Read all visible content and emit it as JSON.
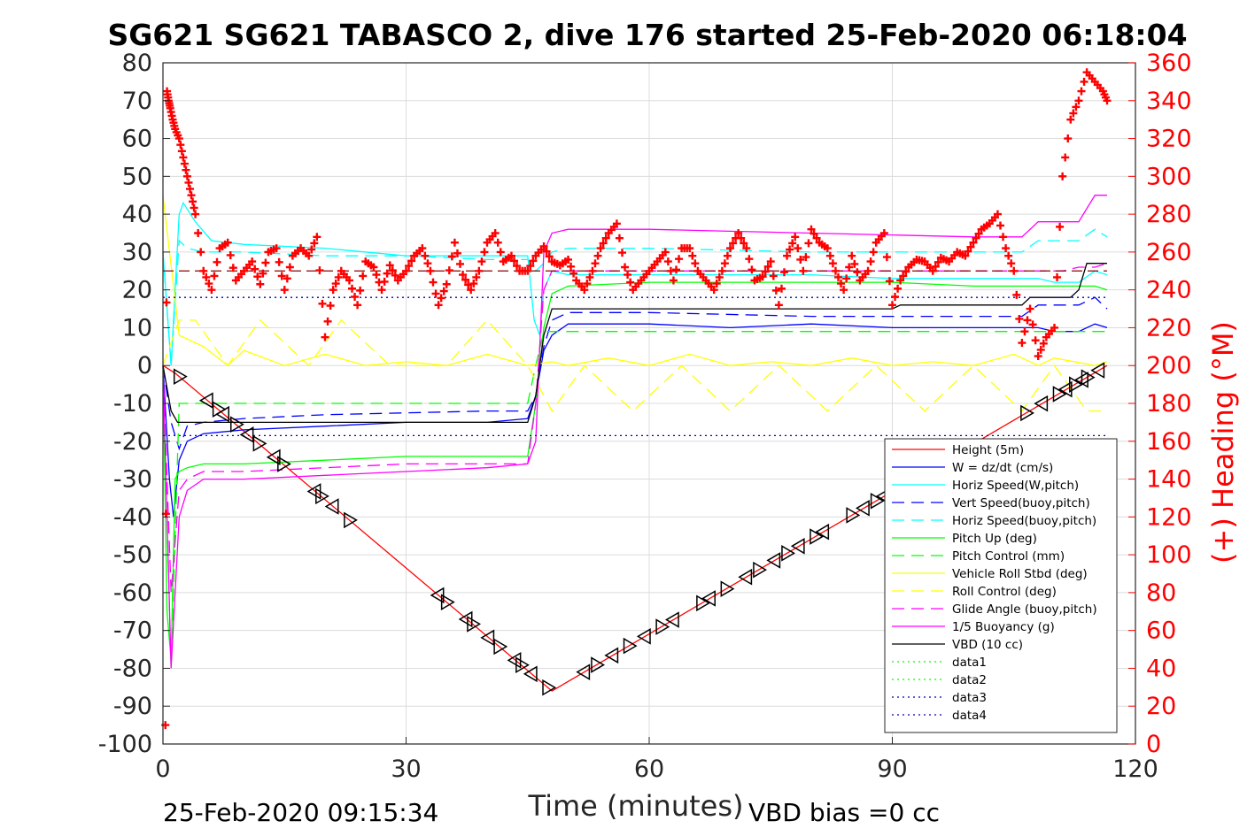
{
  "chart_data": {
    "type": "line",
    "title": "SG621 SG621 TABASCO 2, dive 176 started 25-Feb-2020 06:18:04",
    "xlabel": "Time (minutes)",
    "ylabel": "",
    "ylabel_right": "(+) Heading (°M)",
    "xlim": [
      0,
      120
    ],
    "ylim": [
      -100,
      80
    ],
    "ylim_right": [
      0,
      360
    ],
    "x_ticks": [
      0,
      30,
      60,
      90,
      120
    ],
    "y_ticks": [
      80,
      70,
      60,
      50,
      40,
      30,
      20,
      10,
      0,
      -10,
      -20,
      -30,
      -40,
      -50,
      -60,
      -70,
      -80,
      -90,
      -100
    ],
    "y_ticks_right": [
      360,
      340,
      320,
      300,
      280,
      260,
      240,
      220,
      200,
      180,
      160,
      140,
      120,
      100,
      80,
      60,
      40,
      20,
      0
    ],
    "grid": true,
    "legend_position": "bottom-right",
    "footer_left": "25-Feb-2020 09:15:34",
    "footer_right": "VBD bias =0 cc",
    "series": [
      {
        "name": "Height (5m)",
        "color": "#ff0000",
        "style": "solid",
        "x": [
          0,
          1.5,
          48,
          116.5
        ],
        "y": [
          0,
          -2,
          -86,
          0
        ]
      },
      {
        "name": "W = dz/dt (cm/s)",
        "color": "#0000ff",
        "style": "solid",
        "x": [
          0,
          0.8,
          1.3,
          2,
          3,
          5,
          10,
          20,
          30,
          40,
          45,
          46,
          47,
          48,
          50,
          60,
          70,
          80,
          90,
          100,
          108,
          110,
          113,
          115,
          116.5
        ],
        "y": [
          0,
          -30,
          -40,
          -25,
          -20,
          -18,
          -17,
          -16,
          -15,
          -15,
          -14,
          -8,
          4,
          8,
          11,
          11,
          10,
          11,
          10,
          10,
          10,
          9,
          9,
          11,
          10
        ]
      },
      {
        "name": "Horiz Speed(W,pitch)",
        "color": "#00ffff",
        "style": "solid",
        "x": [
          0,
          1,
          2,
          2.5,
          4,
          6,
          10,
          20,
          30,
          40,
          45,
          45.8,
          46.5,
          47,
          48,
          50,
          60,
          70,
          80,
          90,
          100,
          108,
          110,
          113,
          115,
          116.5
        ],
        "y": [
          30,
          0,
          40,
          43,
          38,
          33,
          32,
          31,
          29,
          29,
          29,
          12,
          8,
          20,
          25,
          24,
          24,
          24,
          24,
          23,
          23,
          23,
          22,
          22,
          25,
          24
        ]
      },
      {
        "name": "Vert Speed(buoy,pitch)",
        "color": "#0000ff",
        "style": "dashed",
        "x": [
          0,
          1,
          2,
          3,
          5,
          10,
          20,
          30,
          40,
          45,
          46,
          47,
          48,
          50,
          60,
          80,
          100,
          106,
          108,
          111,
          113,
          115,
          116.5
        ],
        "y": [
          0,
          -15,
          -22,
          -16,
          -15,
          -14,
          -13,
          -12.5,
          -12,
          -12,
          -8,
          5,
          12,
          14,
          14,
          13,
          13,
          13,
          16,
          16,
          16,
          18,
          15
        ]
      },
      {
        "name": "Horiz Speed(buoy,pitch)",
        "color": "#00ffff",
        "style": "dashed",
        "x": [
          0,
          1,
          2,
          3,
          5,
          10,
          20,
          30,
          40,
          45,
          46,
          47,
          48,
          50,
          60,
          80,
          100,
          106,
          108,
          111,
          113,
          115,
          116.5
        ],
        "y": [
          30,
          0,
          33,
          31,
          30,
          30,
          29,
          29,
          28,
          28,
          25,
          27,
          30,
          31,
          31,
          30,
          30,
          30,
          33,
          33,
          33,
          36,
          34
        ]
      },
      {
        "name": "Pitch Up (deg)",
        "color": "#00ff00",
        "style": "solid",
        "x": [
          0,
          0.5,
          1,
          1.5,
          2,
          3,
          5,
          10,
          20,
          30,
          40,
          45,
          46,
          47,
          48,
          50,
          60,
          70,
          80,
          90,
          100,
          110,
          113,
          115,
          116.5
        ],
        "y": [
          0,
          -65,
          -78,
          -30,
          -28,
          -27,
          -26,
          -26,
          -25,
          -24,
          -24,
          -24,
          -10,
          10,
          19,
          21,
          22,
          22,
          22,
          22,
          21,
          21,
          21,
          21,
          20
        ]
      },
      {
        "name": "Pitch Control (mm)",
        "color": "#00ff00",
        "style": "dashed",
        "x": [
          0,
          1,
          2,
          4,
          10,
          20,
          30,
          40,
          45,
          46,
          47,
          48,
          50,
          60,
          80,
          100,
          110,
          116.5
        ],
        "y": [
          0,
          -80,
          -10,
          -10,
          -10,
          -10,
          -10,
          -10,
          -10,
          0,
          9,
          9,
          9,
          9,
          9,
          9,
          9,
          9
        ]
      },
      {
        "name": "Vehicle Roll Stbd (deg)",
        "color": "#ffff00",
        "style": "solid",
        "x": [
          0,
          2,
          5,
          8,
          10,
          15,
          20,
          25,
          30,
          35,
          40,
          45,
          48,
          50,
          55,
          60,
          65,
          70,
          75,
          80,
          85,
          90,
          95,
          100,
          105,
          108,
          110,
          115,
          116.5
        ],
        "y": [
          45,
          8,
          5,
          0,
          4,
          0,
          3,
          0,
          1,
          0,
          3,
          0,
          1,
          0,
          2,
          0,
          3,
          0,
          1,
          0,
          2,
          0,
          1,
          0,
          3,
          0,
          2,
          0,
          1
        ]
      },
      {
        "name": "Roll Control (deg)",
        "color": "#ffff00",
        "style": "dashed",
        "x": [
          0,
          2,
          4,
          8,
          12,
          18,
          22,
          28,
          35,
          40,
          45,
          48,
          52,
          58,
          64,
          70,
          76,
          82,
          88,
          94,
          100,
          106,
          110,
          114,
          116.5
        ],
        "y": [
          0,
          12,
          12,
          0,
          12,
          0,
          12,
          0,
          0,
          12,
          0,
          -12,
          0,
          -12,
          0,
          -12,
          0,
          -12,
          0,
          -12,
          0,
          -12,
          0,
          -12,
          -12
        ]
      },
      {
        "name": "Glide Angle (buoy,pitch)",
        "color": "#ff00ff",
        "style": "dashed",
        "x": [
          0,
          1,
          2,
          3,
          5,
          10,
          20,
          30,
          40,
          45,
          46,
          47,
          48,
          50,
          60,
          80,
          100,
          106,
          108,
          111,
          113,
          115,
          116.5
        ],
        "y": [
          0,
          -60,
          -33,
          -30,
          -28,
          -28,
          -27,
          -26,
          -26,
          -26,
          -10,
          20,
          25,
          25,
          25,
          25,
          25,
          25,
          25,
          25,
          26,
          26,
          27
        ]
      },
      {
        "name": "1/5 Buoyancy (g)",
        "color": "#ff00ff",
        "style": "solid",
        "x": [
          0,
          1,
          2,
          3,
          5,
          10,
          20,
          30,
          40,
          45,
          46,
          47,
          48,
          50,
          60,
          70,
          80,
          90,
          100,
          106,
          108,
          111,
          113,
          115,
          116.5
        ],
        "y": [
          0,
          -80,
          -40,
          -33,
          -30,
          -30,
          -29,
          -28,
          -27,
          -26,
          -20,
          30,
          35,
          36,
          36,
          35.5,
          35,
          34.5,
          34,
          34,
          38,
          38,
          38,
          45,
          45
        ]
      },
      {
        "name": "VBD (10 cc)",
        "color": "#000000",
        "style": "solid",
        "x": [
          0,
          1,
          1.8,
          45,
          46,
          47,
          48,
          90,
          91,
          106,
          107,
          112,
          113,
          114,
          116.5
        ],
        "y": [
          0,
          -12,
          -15,
          -15,
          -8,
          8,
          15,
          15,
          16,
          16,
          18,
          18,
          20,
          27,
          27
        ]
      },
      {
        "name": "data1",
        "color": "#00ff00",
        "style": "dotted",
        "x": [],
        "y": []
      },
      {
        "name": "data2",
        "color": "#00ff00",
        "style": "dotted",
        "x": [],
        "y": []
      },
      {
        "name": "data3",
        "color": "#0000aa",
        "style": "dotted",
        "x": [
          0,
          116.5
        ],
        "y": [
          18,
          18
        ]
      },
      {
        "name": "data4",
        "color": "#0000aa",
        "style": "dotted",
        "x": [
          0,
          116.5
        ],
        "y": [
          -18.5,
          -18.5
        ]
      }
    ],
    "reference_lines": [
      {
        "color": "#8b0000",
        "style": "dashed",
        "y": 25,
        "x": [
          0,
          116.5
        ]
      }
    ],
    "triangle_markers": {
      "color": "#000000",
      "x": [
        2,
        5.5,
        6.8,
        7.5,
        9,
        10.5,
        11.8,
        13.8,
        14.8,
        18.8,
        19.5,
        21,
        23,
        34,
        35,
        37.5,
        38.2,
        40.2,
        41.5,
        43.5,
        44.2,
        45.5,
        47.5,
        52,
        53.5,
        55.5,
        57.5,
        59.5,
        61.5,
        63,
        66.5,
        67.5,
        69.5,
        72,
        73.5,
        75.5,
        77,
        78.5,
        80.5,
        81.5,
        85,
        86.5,
        88,
        89,
        106.5,
        108.5,
        110.5,
        111.5,
        112.5,
        113.5,
        114,
        115.5
      ]
    },
    "heading": {
      "name": "(+) Heading (°M)",
      "color": "#ff0000",
      "x": [
        0.3,
        0.5,
        0.7,
        0.9,
        1.2,
        1.5,
        2,
        2.5,
        3,
        3.5,
        4,
        5,
        6,
        7,
        8,
        9,
        10,
        11,
        12,
        13,
        14,
        15,
        16,
        17,
        18,
        19,
        20,
        21,
        22,
        23,
        24,
        25,
        26,
        27,
        28,
        29,
        30,
        31,
        32,
        33,
        34,
        35,
        36,
        37,
        38,
        39,
        40,
        41,
        42,
        43,
        44,
        45,
        46,
        47,
        48,
        49,
        50,
        51,
        52,
        53,
        54,
        55,
        56,
        57,
        58,
        59,
        60,
        61,
        62,
        63,
        64,
        65,
        66,
        67,
        68,
        69,
        70,
        71,
        72,
        73,
        74,
        75,
        76,
        77,
        78,
        79,
        80,
        81,
        82,
        83,
        84,
        85,
        86,
        87,
        88,
        89,
        90,
        91,
        92,
        93,
        94,
        95,
        96,
        97,
        98,
        99,
        100,
        101,
        102,
        103,
        104,
        105,
        106,
        107,
        108,
        109,
        110,
        111,
        112,
        113,
        114,
        115,
        116,
        116.5
      ],
      "y": [
        10,
        345,
        340,
        336,
        330,
        325,
        320,
        310,
        300,
        290,
        280,
        250,
        240,
        262,
        265,
        245,
        250,
        255,
        243,
        260,
        262,
        240,
        258,
        262,
        258,
        268,
        215,
        240,
        250,
        245,
        232,
        255,
        252,
        240,
        253,
        245,
        250,
        258,
        262,
        250,
        232,
        243,
        265,
        248,
        240,
        250,
        265,
        270,
        255,
        258,
        250,
        250,
        258,
        263,
        255,
        253,
        256,
        245,
        240,
        250,
        262,
        270,
        275,
        252,
        240,
        245,
        250,
        255,
        260,
        245,
        262,
        262,
        250,
        245,
        240,
        250,
        262,
        270,
        262,
        245,
        247,
        255,
        232,
        258,
        268,
        250,
        272,
        265,
        262,
        250,
        240,
        258,
        245,
        250,
        265,
        270,
        232,
        245,
        252,
        256,
        255,
        250,
        257,
        255,
        260,
        258,
        265,
        272,
        275,
        280,
        262,
        250,
        212,
        230,
        205,
        215,
        220,
        300,
        330,
        340,
        355,
        350,
        345,
        340
      ]
    }
  }
}
